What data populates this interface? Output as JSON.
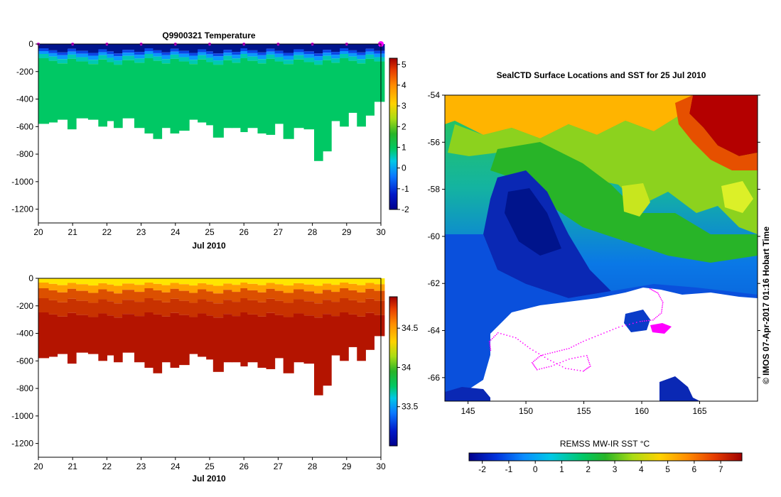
{
  "chart_data": [
    {
      "type": "heatmap",
      "panel": "temperature-profile",
      "title": "Q9900321  Temperature",
      "xlabel": "Jul 2010",
      "ylabel": "",
      "x_ticks": [
        "20",
        "21",
        "22",
        "23",
        "24",
        "25",
        "26",
        "27",
        "28",
        "29",
        "30"
      ],
      "xlim": [
        20,
        30
      ],
      "y_ticks": [
        "0",
        "-200",
        "-400",
        "-600",
        "-800",
        "-1000",
        "-1200"
      ],
      "ylim": [
        -1300,
        0
      ],
      "colorbar": {
        "ticks": [
          "-2",
          "-1",
          "0",
          "1",
          "2",
          "3",
          "4",
          "5"
        ],
        "range": [
          -2,
          5.3
        ]
      },
      "profile_times": [
        20.0,
        20.3,
        20.55,
        20.85,
        21.1,
        21.45,
        21.75,
        22.0,
        22.2,
        22.45,
        22.8,
        23.1,
        23.35,
        23.6,
        23.85,
        24.1,
        24.4,
        24.65,
        24.9,
        25.1,
        25.4,
        25.65,
        25.9,
        26.1,
        26.4,
        26.65,
        26.9,
        27.15,
        27.45,
        27.75,
        28.05,
        28.3,
        28.55,
        28.8,
        29.05,
        29.3,
        29.55,
        29.8
      ],
      "max_depth_m": [
        580,
        570,
        550,
        620,
        540,
        550,
        600,
        560,
        610,
        540,
        610,
        650,
        690,
        610,
        650,
        630,
        550,
        570,
        590,
        680,
        610,
        610,
        640,
        610,
        650,
        660,
        580,
        690,
        610,
        620,
        850,
        780,
        560,
        600,
        500,
        600,
        520,
        420
      ],
      "surface_markers": [
        "20",
        "21",
        "22",
        "23",
        "24",
        "25",
        "26",
        "27",
        "28",
        "29",
        "30"
      ]
    },
    {
      "type": "heatmap",
      "panel": "salinity-profile",
      "title": "",
      "xlabel": "Jul 2010",
      "ylabel": "",
      "x_ticks": [
        "20",
        "21",
        "22",
        "23",
        "24",
        "25",
        "26",
        "27",
        "28",
        "29",
        "30"
      ],
      "xlim": [
        20,
        30
      ],
      "y_ticks": [
        "0",
        "-200",
        "-400",
        "-600",
        "-800",
        "-1000",
        "-1200"
      ],
      "ylim": [
        -1300,
        0
      ],
      "colorbar": {
        "ticks": [
          "33.5",
          "34",
          "34.5"
        ],
        "range": [
          33.0,
          34.9
        ]
      },
      "profile_times": [
        20.0,
        20.3,
        20.55,
        20.85,
        21.1,
        21.45,
        21.75,
        22.0,
        22.2,
        22.45,
        22.8,
        23.1,
        23.35,
        23.6,
        23.85,
        24.1,
        24.4,
        24.65,
        24.9,
        25.1,
        25.4,
        25.65,
        25.9,
        26.1,
        26.4,
        26.65,
        26.9,
        27.15,
        27.45,
        27.75,
        28.05,
        28.3,
        28.55,
        28.8,
        29.05,
        29.3,
        29.55,
        29.8
      ],
      "max_depth_m": [
        580,
        570,
        550,
        620,
        540,
        550,
        600,
        560,
        610,
        540,
        610,
        650,
        690,
        610,
        650,
        630,
        550,
        570,
        590,
        680,
        610,
        610,
        640,
        610,
        650,
        660,
        580,
        690,
        610,
        620,
        850,
        780,
        560,
        600,
        500,
        600,
        520,
        420
      ]
    },
    {
      "type": "heatmap",
      "panel": "sst-map",
      "title": "SealCTD Surface Locations and SST for 25 Jul 2010",
      "xlabel": "",
      "ylabel": "",
      "x_ticks": [
        "145",
        "150",
        "155",
        "160",
        "165"
      ],
      "xlim": [
        143,
        170
      ],
      "y_ticks": [
        "-54",
        "-56",
        "-58",
        "-60",
        "-62",
        "-64",
        "-66"
      ],
      "ylim": [
        -67,
        -54
      ],
      "colorbar": {
        "label": "REMSS MW-IR SST °C",
        "ticks": [
          "-2",
          "-1",
          "0",
          "1",
          "2",
          "3",
          "4",
          "5",
          "6",
          "7"
        ],
        "range": [
          -2.5,
          7.8
        ]
      },
      "copyright": "© IMOS 07-Apr-2017 01:16 Hobart Time"
    }
  ]
}
